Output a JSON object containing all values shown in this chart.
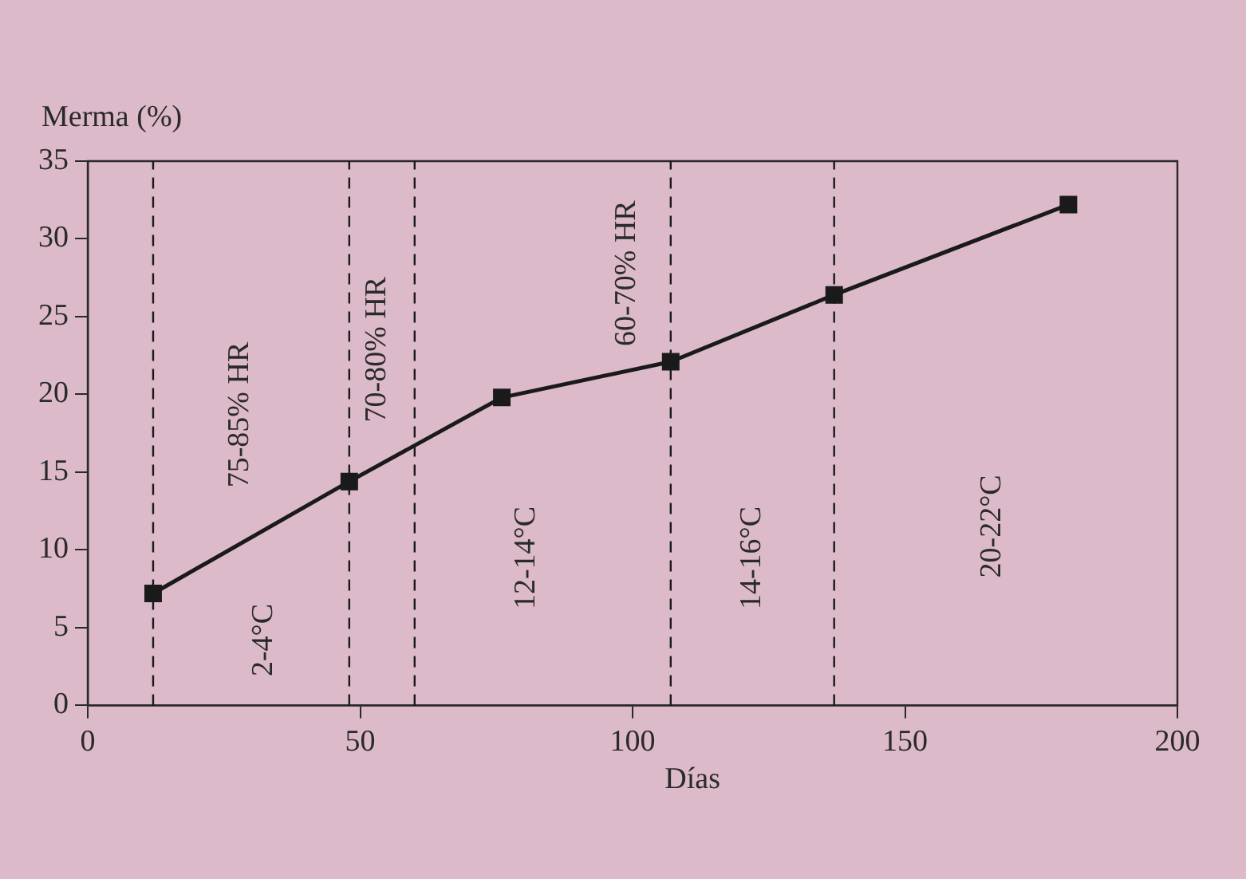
{
  "chart_data": {
    "type": "line",
    "xlabel": "Días",
    "ylabel": "Merma (%)",
    "x": [
      12,
      48,
      76,
      107,
      137,
      180
    ],
    "series": [
      {
        "color": "#1a1a1a",
        "values": [
          7.2,
          14.4,
          19.8,
          22.1,
          26.4,
          32.2
        ]
      }
    ],
    "xlim": [
      0,
      200
    ],
    "xticks": [
      0,
      50,
      100,
      150,
      200
    ],
    "ylim": [
      0,
      35
    ],
    "yticks": [
      0,
      5,
      10,
      15,
      20,
      25,
      30,
      35
    ],
    "grid": false,
    "legend": false,
    "marker": "square",
    "line_style": "solid",
    "ref_lines": [
      {
        "axis": "x",
        "value": 12,
        "line_style": "dashed",
        "color": "#1a1a1a"
      },
      {
        "axis": "x",
        "value": 48,
        "line_style": "dashed",
        "color": "#1a1a1a"
      },
      {
        "axis": "x",
        "value": 60,
        "line_style": "dashed",
        "color": "#1a1a1a"
      },
      {
        "axis": "x",
        "value": 107,
        "line_style": "dashed",
        "color": "#1a1a1a"
      },
      {
        "axis": "x",
        "value": 137,
        "line_style": "dashed",
        "color": "#1a1a1a"
      }
    ],
    "annotations": [
      "75-85% HR",
      "2-4°C",
      "70-80% HR",
      "12-14°C",
      "60-70% HR",
      "14-16°C",
      "20-22°C"
    ]
  }
}
